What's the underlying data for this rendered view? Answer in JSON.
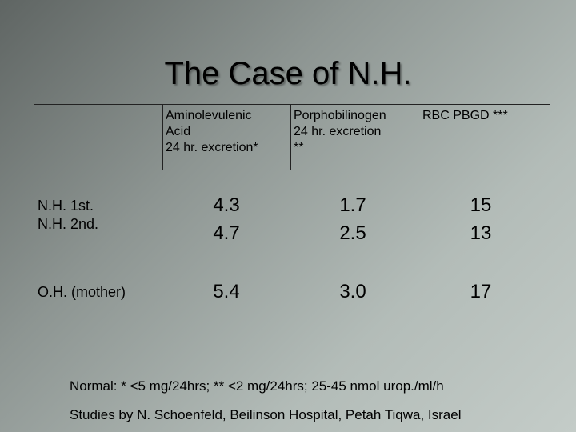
{
  "title": "The Case of N.H.",
  "table": {
    "header": [
      [
        "Aminolevulenic",
        "Acid",
        "24 hr. excretion*"
      ],
      [
        "Porphobilinogen",
        "24 hr. excretion",
        "**"
      ],
      [
        "RBC PBGD ***"
      ]
    ],
    "rows": [
      {
        "label": [
          "N.H. 1st.",
          "N.H. 2nd."
        ],
        "cells": [
          [
            "4.3",
            "4.7"
          ],
          [
            "1.7",
            "2.5"
          ],
          [
            "15",
            "13"
          ]
        ]
      },
      {
        "label": [
          "O.H. (mother)"
        ],
        "cells": [
          [
            "5.4"
          ],
          [
            "3.0"
          ],
          [
            "17"
          ]
        ]
      }
    ]
  },
  "footnotes": [
    "Normal: * <5 mg/24hrs; ** <2 mg/24hrs; 25-45 nmol urop./ml/h",
    "Studies by N. Schoenfeld, Beilinson Hospital, Petah Tiqwa, Israel"
  ]
}
